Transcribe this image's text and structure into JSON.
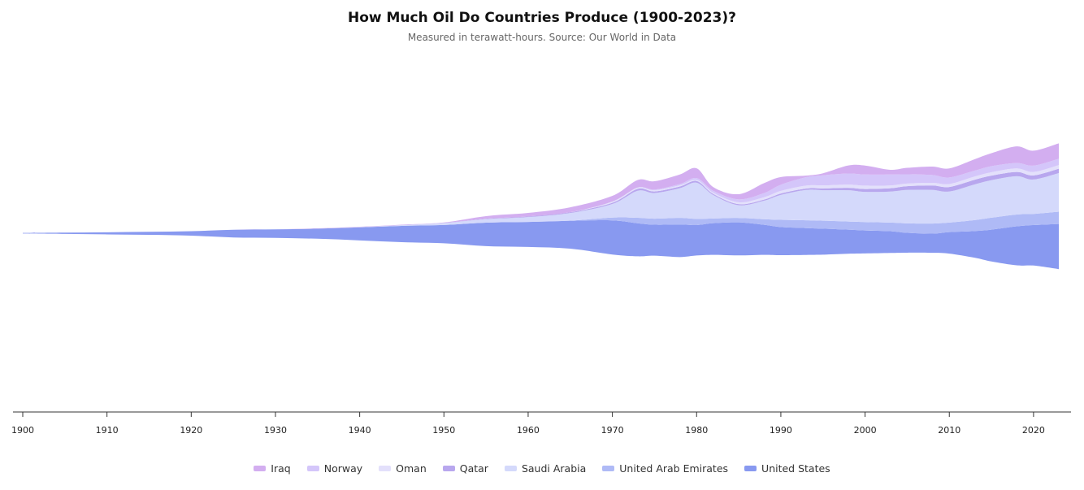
{
  "title": "How Much Oil Do Countries Produce (1900-2023)?",
  "subtitle": "Measured in terawatt-hours. Source: Our World in Data",
  "colors": {
    "Iraq": "#d3aef0",
    "Norway": "#d4c6fa",
    "Oman": "#e3e0fb",
    "Qatar": "#b8a7ee",
    "Saudi Arabia": "#d4d9fb",
    "United Arab Emirates": "#afbaf6",
    "United States": "#8899f0"
  },
  "chart_data": {
    "type": "area",
    "subtype": "streamgraph",
    "title": "How Much Oil Do Countries Produce (1900-2023)?",
    "subtitle": "Measured in terawatt-hours. Source: Our World in Data",
    "unit": "TWh",
    "xlim": [
      1900,
      2023
    ],
    "x_ticks": [
      1900,
      1910,
      1920,
      1930,
      1940,
      1950,
      1960,
      1970,
      1980,
      1990,
      2000,
      2010,
      2020
    ],
    "legend_position": "bottom",
    "x": [
      1900,
      1905,
      1910,
      1915,
      1920,
      1925,
      1930,
      1935,
      1940,
      1945,
      1950,
      1955,
      1960,
      1965,
      1970,
      1973,
      1975,
      1978,
      1980,
      1982,
      1985,
      1988,
      1990,
      1993,
      1995,
      1998,
      2000,
      2003,
      2005,
      2008,
      2010,
      2013,
      2015,
      2018,
      2020,
      2023
    ],
    "series": [
      {
        "name": "United States",
        "values": [
          100,
          220,
          350,
          500,
          730,
          1260,
          1400,
          1650,
          2140,
          2670,
          3010,
          3860,
          4100,
          4580,
          5600,
          5420,
          5080,
          5340,
          4990,
          5200,
          5410,
          4920,
          4610,
          4410,
          4280,
          3960,
          3770,
          3570,
          3250,
          3160,
          3530,
          4370,
          5220,
          6400,
          6640,
          7410
        ]
      },
      {
        "name": "United Arab Emirates",
        "values": [
          0,
          0,
          0,
          0,
          0,
          0,
          0,
          0,
          0,
          0,
          0,
          0,
          0,
          20,
          460,
          900,
          990,
          1080,
          1010,
          770,
          730,
          930,
          1180,
          1270,
          1300,
          1330,
          1390,
          1420,
          1560,
          1650,
          1560,
          1790,
          1960,
          1950,
          1840,
          2020
        ]
      },
      {
        "name": "Saudi Arabia",
        "values": [
          0,
          0,
          0,
          0,
          0,
          0,
          0,
          0,
          60,
          140,
          320,
          580,
          800,
          1250,
          2230,
          4430,
          4210,
          4870,
          5940,
          3830,
          2090,
          3020,
          4090,
          4980,
          5000,
          5130,
          4940,
          5090,
          5480,
          5520,
          5100,
          5860,
          6160,
          6280,
          5640,
          6330
        ]
      },
      {
        "name": "Qatar",
        "values": [
          0,
          0,
          0,
          0,
          0,
          0,
          0,
          0,
          0,
          0,
          20,
          70,
          110,
          130,
          210,
          330,
          260,
          290,
          280,
          190,
          180,
          190,
          240,
          250,
          300,
          410,
          480,
          540,
          620,
          720,
          740,
          760,
          740,
          700,
          670,
          710
        ]
      },
      {
        "name": "Oman",
        "values": [
          0,
          0,
          0,
          0,
          0,
          0,
          0,
          0,
          0,
          0,
          0,
          0,
          0,
          0,
          200,
          180,
          200,
          190,
          170,
          200,
          300,
          380,
          420,
          470,
          500,
          520,
          560,
          460,
          430,
          440,
          490,
          540,
          560,
          570,
          560,
          600
        ]
      },
      {
        "name": "Norway",
        "values": [
          0,
          0,
          0,
          0,
          0,
          0,
          0,
          0,
          0,
          0,
          0,
          0,
          0,
          0,
          0,
          30,
          110,
          210,
          310,
          310,
          480,
          690,
          1010,
          1380,
          1650,
          1820,
          1810,
          1800,
          1520,
          1290,
          1080,
          960,
          1000,
          890,
          1050,
          1040
        ]
      },
      {
        "name": "Iraq",
        "values": [
          0,
          0,
          0,
          0,
          0,
          0,
          10,
          50,
          40,
          60,
          80,
          420,
          580,
          810,
          920,
          1240,
          1360,
          1570,
          1600,
          600,
          850,
          1630,
          1270,
          260,
          330,
          1320,
          1480,
          770,
          1060,
          1380,
          1480,
          1870,
          2120,
          2730,
          2450,
          2540
        ]
      }
    ]
  },
  "legend": [
    "Iraq",
    "Norway",
    "Oman",
    "Qatar",
    "Saudi Arabia",
    "United Arab Emirates",
    "United States"
  ]
}
